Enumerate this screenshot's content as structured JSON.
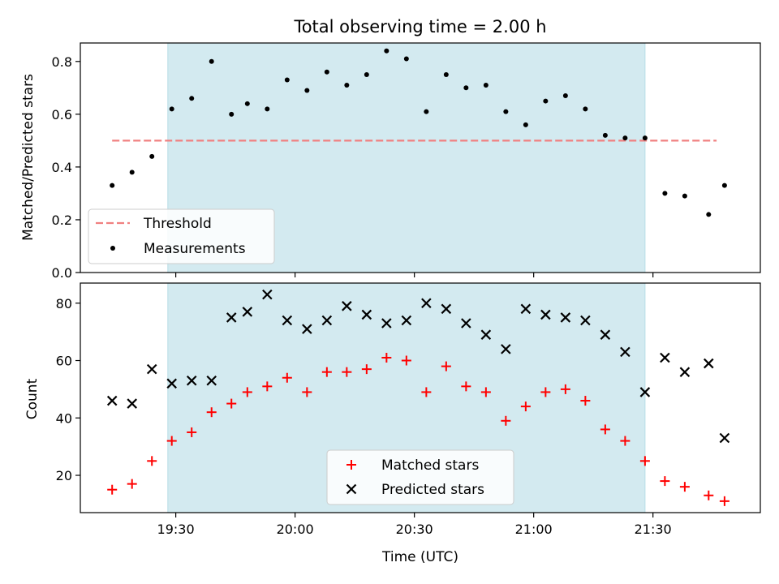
{
  "title": "Total observing time = 2.00 h",
  "colors": {
    "shade": "#d3eaf0",
    "threshold": "#f08080",
    "measurement": "#000000",
    "matched": "#ff0000",
    "predicted": "#000000"
  },
  "chart_data": [
    {
      "type": "scatter",
      "panel": "top",
      "ylabel": "Matched/Predicted stars",
      "ylim": [
        0,
        0.87
      ],
      "yticks": [
        "0.0",
        "0.2",
        "0.4",
        "0.6",
        "0.8"
      ],
      "yticks_values": [
        0,
        0.2,
        0.4,
        0.6,
        0.8
      ],
      "shaded_span": [
        "19:28",
        "21:28"
      ],
      "threshold": {
        "name": "Threshold",
        "y": 0.5,
        "x_range": [
          "19:14",
          "21:46"
        ]
      },
      "legend": {
        "placement": "lower-left",
        "entries": [
          "Threshold",
          "Measurements"
        ]
      },
      "series": [
        {
          "name": "Measurements",
          "x": [
            "19:14",
            "19:19",
            "19:24",
            "19:29",
            "19:34",
            "19:39",
            "19:44",
            "19:48",
            "19:53",
            "19:58",
            "20:03",
            "20:08",
            "20:13",
            "20:18",
            "20:23",
            "20:28",
            "20:33",
            "20:38",
            "20:43",
            "20:48",
            "20:53",
            "20:58",
            "21:03",
            "21:08",
            "21:13",
            "21:18",
            "21:23",
            "21:28",
            "21:33",
            "21:38",
            "21:44",
            "21:48"
          ],
          "y": [
            0.33,
            0.38,
            0.44,
            0.62,
            0.66,
            0.8,
            0.6,
            0.64,
            0.62,
            0.73,
            0.69,
            0.76,
            0.71,
            0.75,
            0.84,
            0.81,
            0.61,
            0.75,
            0.7,
            0.71,
            0.61,
            0.56,
            0.65,
            0.67,
            0.62,
            0.52,
            0.51,
            0.51,
            0.3,
            0.29,
            0.22,
            0.33
          ]
        }
      ]
    },
    {
      "type": "scatter",
      "panel": "bottom",
      "ylabel": "Count",
      "xlabel": "Time (UTC)",
      "ylim": [
        7,
        87
      ],
      "yticks": [
        "20",
        "40",
        "60",
        "80"
      ],
      "yticks_values": [
        20,
        40,
        60,
        80
      ],
      "xlim": [
        "19:06",
        "21:57"
      ],
      "xticks": [
        "19:30",
        "20:00",
        "20:30",
        "21:00",
        "21:30"
      ],
      "shaded_span": [
        "19:28",
        "21:28"
      ],
      "legend": {
        "placement": "lower-center",
        "entries": [
          "Matched stars",
          "Predicted stars"
        ]
      },
      "series": [
        {
          "name": "Matched stars",
          "marker": "plus",
          "x": [
            "19:14",
            "19:19",
            "19:24",
            "19:29",
            "19:34",
            "19:39",
            "19:44",
            "19:48",
            "19:53",
            "19:58",
            "20:03",
            "20:08",
            "20:13",
            "20:18",
            "20:23",
            "20:28",
            "20:33",
            "20:38",
            "20:43",
            "20:48",
            "20:53",
            "20:58",
            "21:03",
            "21:08",
            "21:13",
            "21:18",
            "21:23",
            "21:28",
            "21:33",
            "21:38",
            "21:44",
            "21:48"
          ],
          "y": [
            15,
            17,
            25,
            32,
            35,
            42,
            45,
            49,
            51,
            54,
            49,
            56,
            56,
            57,
            61,
            60,
            49,
            58,
            51,
            49,
            39,
            44,
            49,
            50,
            46,
            36,
            32,
            25,
            18,
            16,
            13,
            11
          ]
        },
        {
          "name": "Predicted stars",
          "marker": "x",
          "x": [
            "19:14",
            "19:19",
            "19:24",
            "19:29",
            "19:34",
            "19:39",
            "19:44",
            "19:48",
            "19:53",
            "19:58",
            "20:03",
            "20:08",
            "20:13",
            "20:18",
            "20:23",
            "20:28",
            "20:33",
            "20:38",
            "20:43",
            "20:48",
            "20:53",
            "20:58",
            "21:03",
            "21:08",
            "21:13",
            "21:18",
            "21:23",
            "21:28",
            "21:33",
            "21:38",
            "21:44",
            "21:48"
          ],
          "y": [
            46,
            45,
            57,
            52,
            53,
            53,
            75,
            77,
            83,
            74,
            71,
            74,
            79,
            76,
            73,
            74,
            80,
            78,
            73,
            69,
            64,
            78,
            76,
            75,
            74,
            69,
            63,
            49,
            61,
            56,
            59,
            33
          ]
        }
      ]
    }
  ]
}
